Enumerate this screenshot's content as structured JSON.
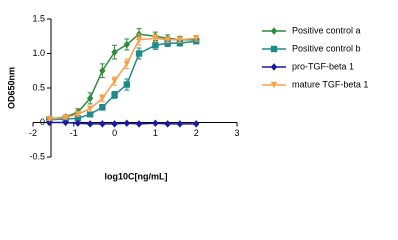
{
  "chart_data": {
    "type": "line",
    "ylabel": "OD650nm",
    "xlabel": "log10C[ng/mL]",
    "x": [
      -1.6,
      -1.2,
      -0.9,
      -0.6,
      -0.3,
      0,
      0.3,
      0.6,
      1.0,
      1.3,
      1.6,
      2.0
    ],
    "series": [
      {
        "name": "Positive control a",
        "color": "#2e8b3a",
        "marker": "diamond",
        "values": [
          0.05,
          0.08,
          0.15,
          0.35,
          0.75,
          1.02,
          1.13,
          1.28,
          1.25,
          1.22,
          1.2,
          1.2
        ],
        "errors": [
          0.02,
          0.03,
          0.05,
          0.08,
          0.1,
          0.1,
          0.08,
          0.08,
          0.06,
          0.05,
          0.05,
          0.05
        ]
      },
      {
        "name": "Positive control b",
        "color": "#1f8a8a",
        "marker": "square",
        "values": [
          0.04,
          0.05,
          0.06,
          0.12,
          0.22,
          0.4,
          0.55,
          1.0,
          1.12,
          1.15,
          1.15,
          1.18
        ],
        "errors": [
          0.02,
          0.02,
          0.02,
          0.03,
          0.04,
          0.05,
          0.08,
          0.08,
          0.06,
          0.05,
          0.04,
          0.04
        ]
      },
      {
        "name": "pro-TGF-beta 1",
        "color": "#1a1aa6",
        "marker": "diamond",
        "values": [
          0.0,
          0.0,
          -0.01,
          -0.02,
          -0.02,
          -0.02,
          -0.01,
          -0.02,
          -0.01,
          -0.02,
          -0.02,
          -0.02
        ],
        "errors": [
          0.01,
          0.01,
          0.01,
          0.01,
          0.01,
          0.01,
          0.01,
          0.01,
          0.01,
          0.01,
          0.01,
          0.01
        ]
      },
      {
        "name": "mature TGF-beta 1",
        "color": "#f5a04a",
        "marker": "triangle",
        "values": [
          0.05,
          0.07,
          0.12,
          0.2,
          0.35,
          0.6,
          0.85,
          1.2,
          1.22,
          1.2,
          1.2,
          1.22
        ],
        "errors": [
          0.02,
          0.02,
          0.03,
          0.04,
          0.05,
          0.06,
          0.07,
          0.08,
          0.05,
          0.04,
          0.04,
          0.04
        ]
      }
    ],
    "xlim": [
      -2,
      3
    ],
    "xticks": [
      -2,
      -1,
      0,
      1,
      2,
      3
    ],
    "ylim": [
      -0.5,
      1.5
    ],
    "yticks": [
      {
        "value": 1.5,
        "label": "1.5"
      },
      {
        "value": 1,
        "label": "1.0"
      },
      0.5,
      0,
      -0.5
    ],
    "legend": "right"
  }
}
